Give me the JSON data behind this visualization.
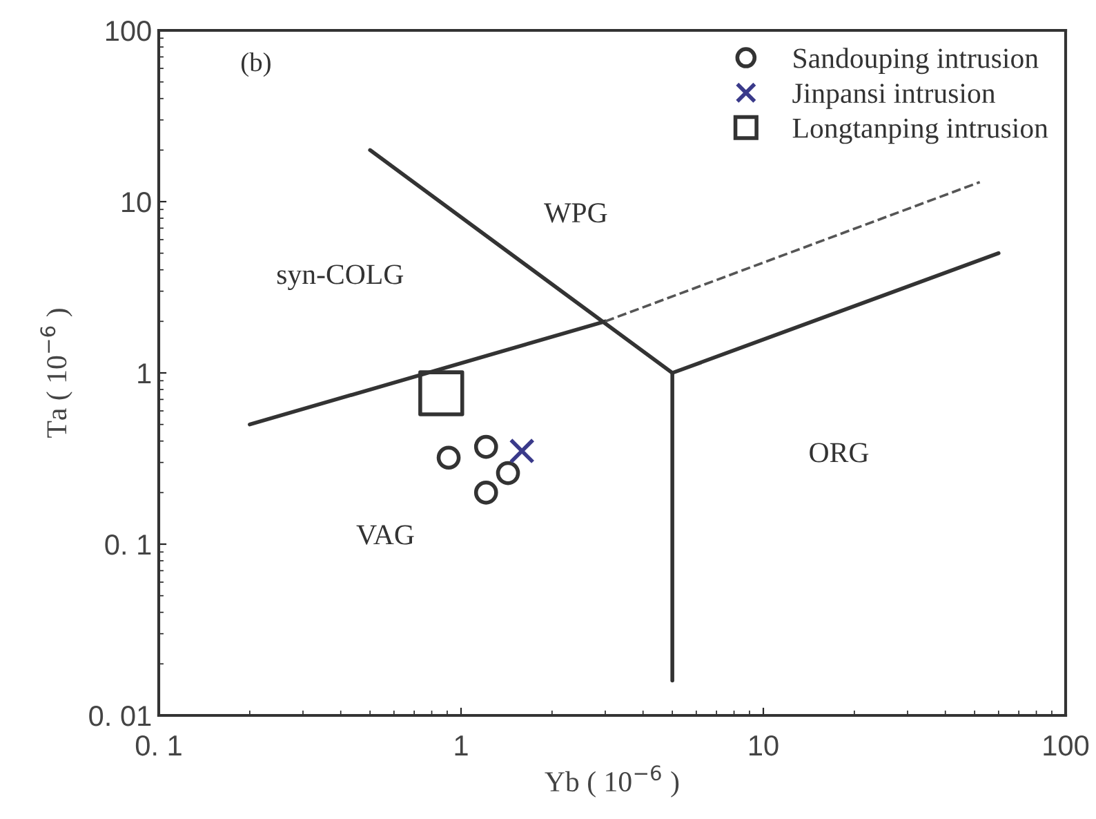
{
  "chart_data": {
    "type": "scatter",
    "xlabel": "Yb ( 10$^{−6}$ )",
    "ylabel": "Ta ( 10$^{−6}$ )",
    "log": "xy",
    "grid": false,
    "legend": "top right",
    "xlim": [
      0.1,
      100
    ],
    "ylim": [
      0.01,
      100
    ],
    "xticks": [
      {
        "value": 0.1,
        "label": "0. 1"
      },
      1,
      10,
      100
    ],
    "yticks": [
      {
        "value": 0.01,
        "label": "0. 01"
      },
      {
        "value": 0.1,
        "label": "0. 1"
      },
      1,
      10,
      100
    ],
    "series": [
      {
        "name": "Sandouping intrusion",
        "marker": "circle",
        "color": "#333333",
        "x": [
          0.91,
          1.21,
          1.43,
          1.21
        ],
        "values": [
          0.32,
          0.37,
          0.26,
          0.2
        ]
      },
      {
        "name": "Jinpansi intrusion",
        "marker": "cross",
        "color": "#3a3a8a",
        "x": [
          1.59
        ],
        "values": [
          0.35
        ]
      },
      {
        "name": "Longtanping intrusion",
        "marker": "square",
        "color": "#333333",
        "x": [
          0.86
        ],
        "values": [
          0.76
        ]
      },
      {
        "type": "line",
        "line_style": "solid",
        "color": "#333333",
        "x": [
          0.5,
          5
        ],
        "values": [
          20,
          1
        ]
      },
      {
        "type": "line",
        "line_style": "solid",
        "color": "#333333",
        "x": [
          0.2,
          3
        ],
        "values": [
          0.5,
          2
        ]
      },
      {
        "type": "line",
        "line_style": "dashed",
        "color": "#555555",
        "x": [
          3,
          52
        ],
        "values": [
          2,
          13
        ]
      },
      {
        "type": "line",
        "line_style": "solid",
        "color": "#333333",
        "x": [
          5,
          5
        ],
        "values": [
          1,
          0.016
        ]
      },
      {
        "type": "line",
        "line_style": "solid",
        "color": "#333333",
        "x": [
          5,
          60
        ],
        "values": [
          1,
          5
        ]
      }
    ],
    "annotations": [
      "(b)",
      "syn-COLG",
      "WPG",
      "ORG",
      "VAG"
    ]
  }
}
